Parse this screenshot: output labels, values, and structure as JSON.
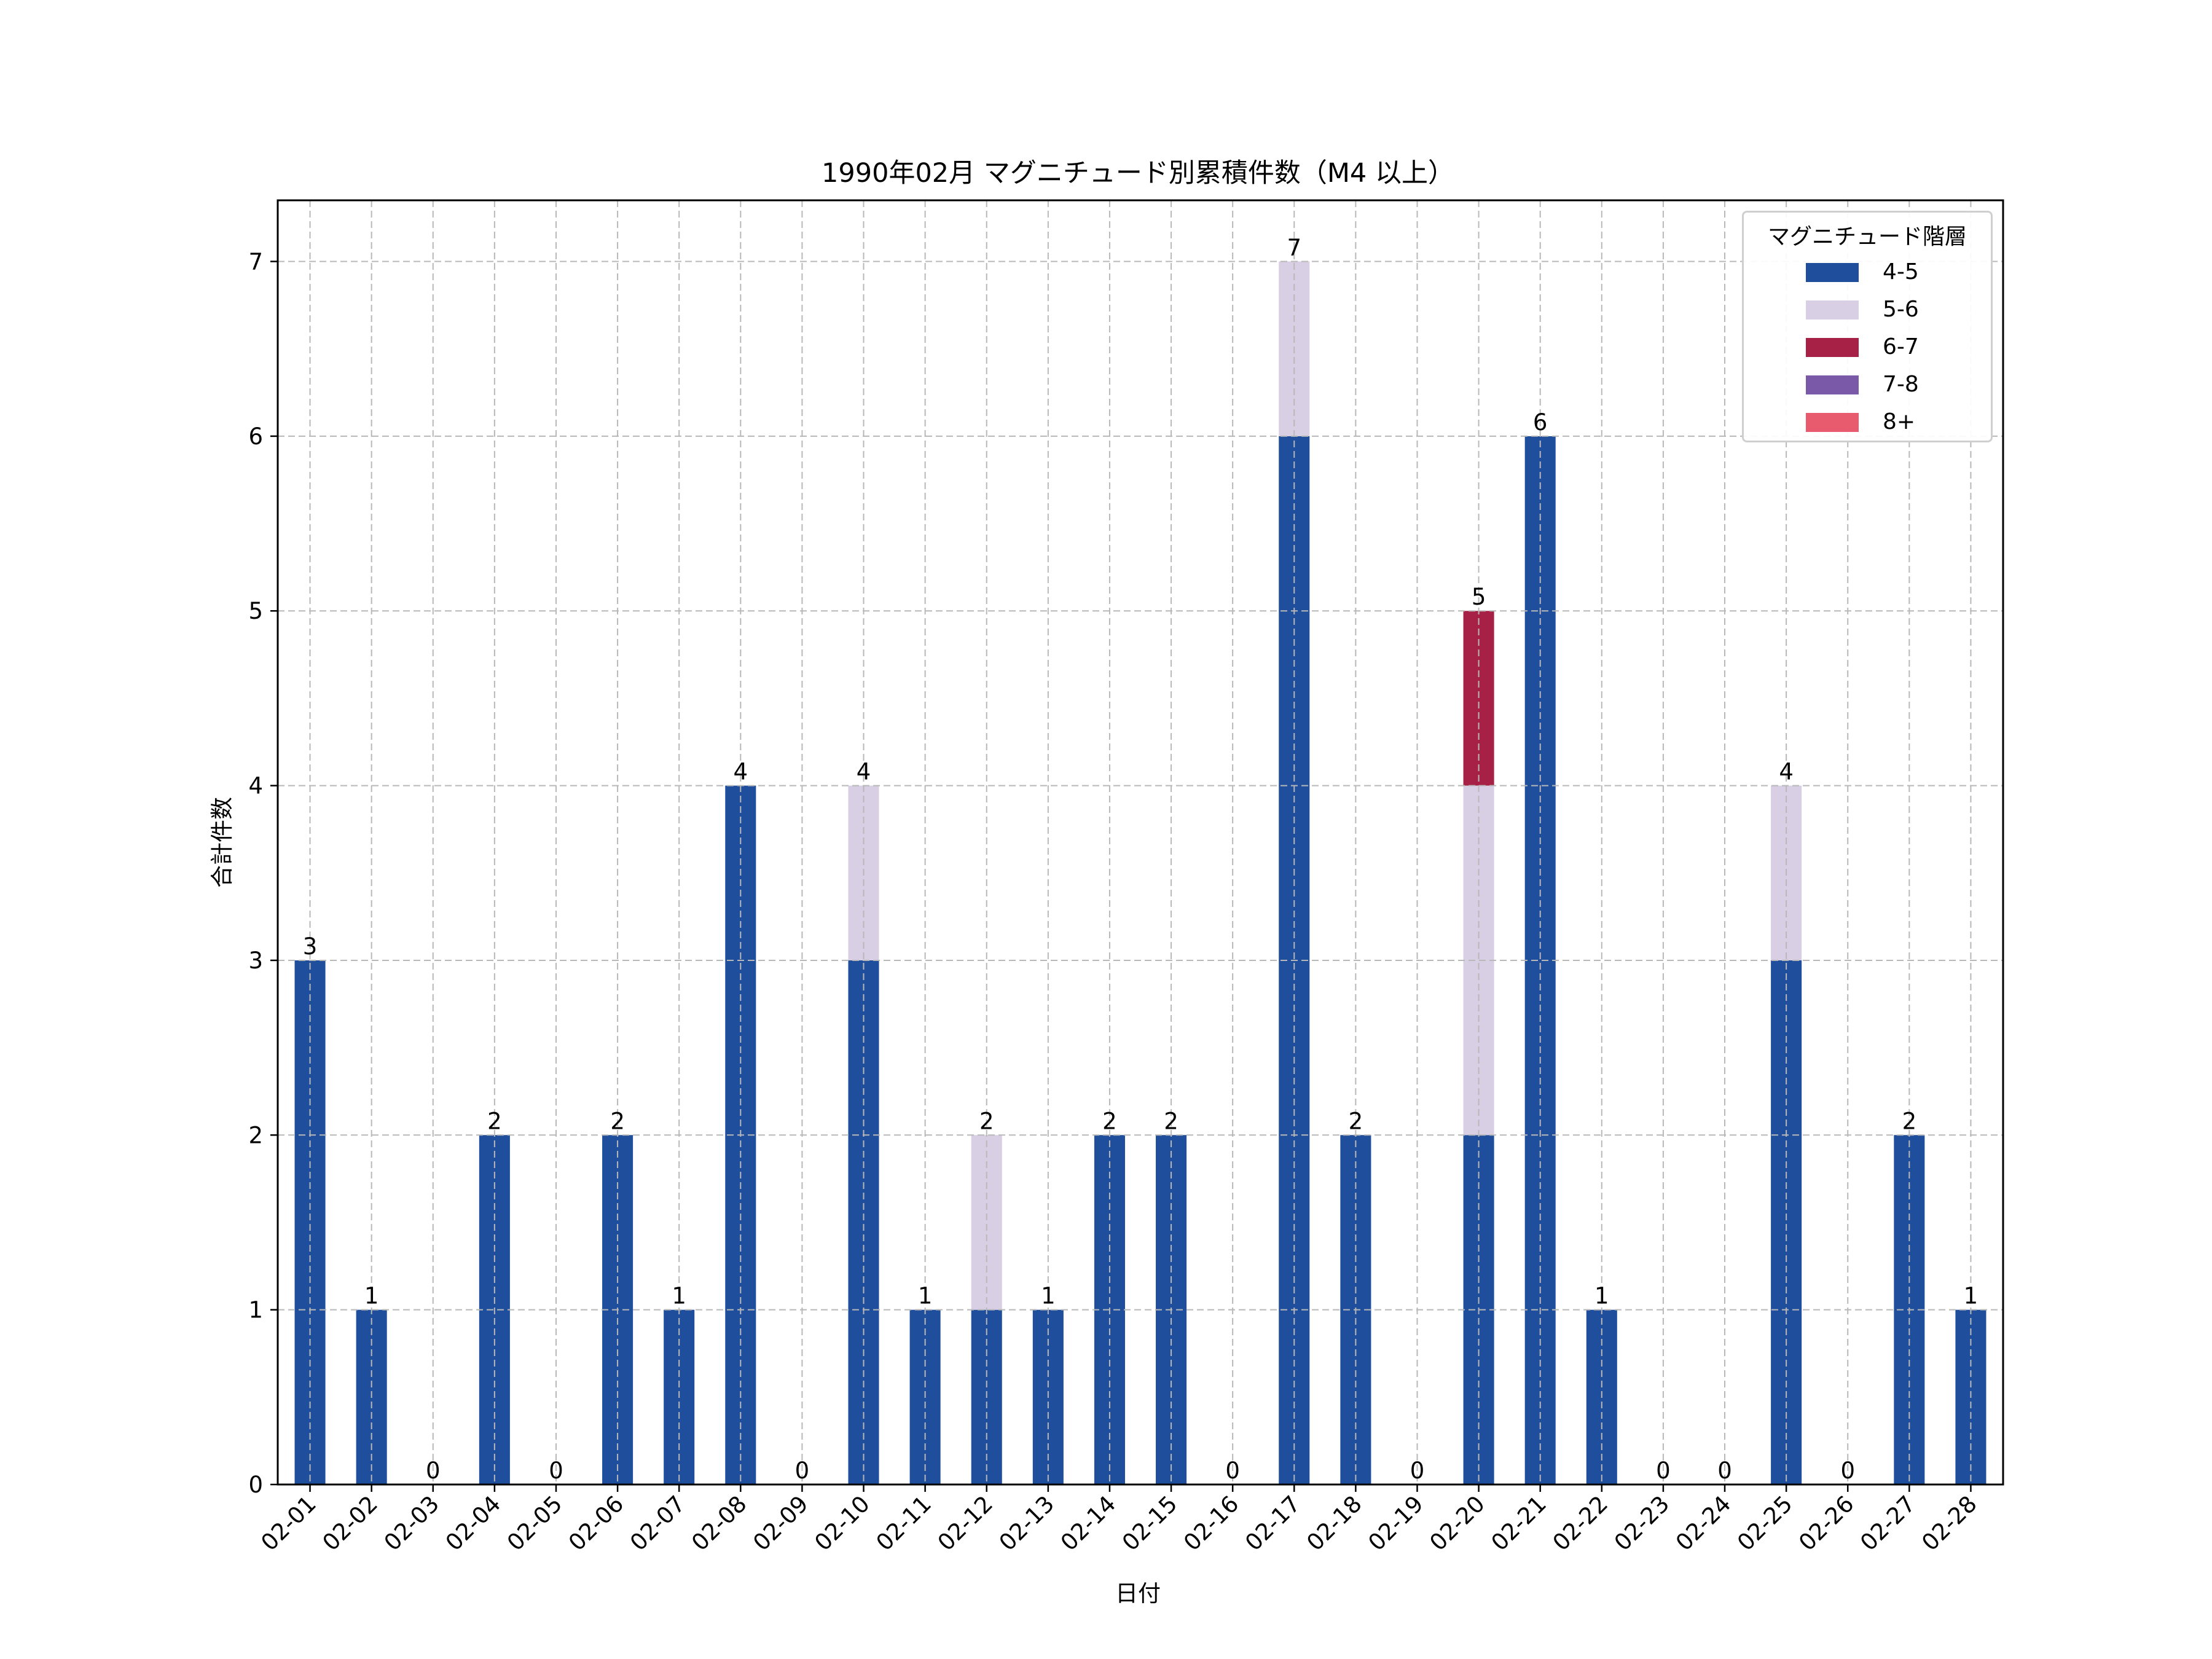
{
  "chart_data": {
    "type": "bar",
    "stacked": true,
    "title": "1990年02月 マグニチュード別累積件数（M4 以上）",
    "xlabel": "日付",
    "ylabel": "合計件数",
    "ylim": [
      0,
      7.35
    ],
    "yticks": [
      0,
      1,
      2,
      3,
      4,
      5,
      6,
      7
    ],
    "grid": true,
    "legend_title": "マグニチュード階層",
    "legend_position": "top-right",
    "categories": [
      "02-01",
      "02-02",
      "02-03",
      "02-04",
      "02-05",
      "02-06",
      "02-07",
      "02-08",
      "02-09",
      "02-10",
      "02-11",
      "02-12",
      "02-13",
      "02-14",
      "02-15",
      "02-16",
      "02-17",
      "02-18",
      "02-19",
      "02-20",
      "02-21",
      "02-22",
      "02-23",
      "02-24",
      "02-25",
      "02-26",
      "02-27",
      "02-28"
    ],
    "series": [
      {
        "name": "4-5",
        "color": "#1f4e9c",
        "values": [
          3,
          1,
          0,
          2,
          0,
          2,
          1,
          4,
          0,
          3,
          1,
          1,
          1,
          2,
          2,
          0,
          6,
          2,
          0,
          2,
          6,
          1,
          0,
          0,
          3,
          0,
          2,
          1
        ]
      },
      {
        "name": "5-6",
        "color": "#d9cfe4",
        "values": [
          0,
          0,
          0,
          0,
          0,
          0,
          0,
          0,
          0,
          1,
          0,
          1,
          0,
          0,
          0,
          0,
          1,
          0,
          0,
          2,
          0,
          0,
          0,
          0,
          1,
          0,
          0,
          0
        ]
      },
      {
        "name": "6-7",
        "color": "#a62145",
        "values": [
          0,
          0,
          0,
          0,
          0,
          0,
          0,
          0,
          0,
          0,
          0,
          0,
          0,
          0,
          0,
          0,
          0,
          0,
          0,
          1,
          0,
          0,
          0,
          0,
          0,
          0,
          0,
          0
        ]
      },
      {
        "name": "7-8",
        "color": "#7a5aa8",
        "values": [
          0,
          0,
          0,
          0,
          0,
          0,
          0,
          0,
          0,
          0,
          0,
          0,
          0,
          0,
          0,
          0,
          0,
          0,
          0,
          0,
          0,
          0,
          0,
          0,
          0,
          0,
          0,
          0
        ]
      },
      {
        "name": "8+",
        "color": "#e85a6e",
        "values": [
          0,
          0,
          0,
          0,
          0,
          0,
          0,
          0,
          0,
          0,
          0,
          0,
          0,
          0,
          0,
          0,
          0,
          0,
          0,
          0,
          0,
          0,
          0,
          0,
          0,
          0,
          0,
          0
        ]
      }
    ],
    "totals": [
      3,
      1,
      0,
      2,
      0,
      2,
      1,
      4,
      0,
      4,
      1,
      2,
      1,
      2,
      2,
      0,
      7,
      2,
      0,
      5,
      6,
      1,
      0,
      0,
      4,
      0,
      2,
      1
    ]
  }
}
